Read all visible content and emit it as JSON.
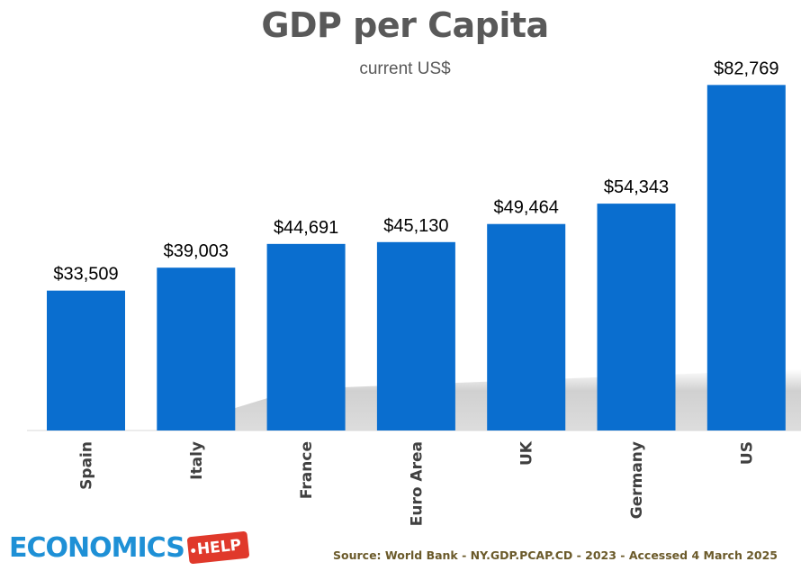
{
  "chart_data": {
    "type": "bar",
    "title": "GDP per Capita",
    "subtitle": "current US$",
    "categories": [
      "Spain",
      "Italy",
      "France",
      "Euro Area",
      "UK",
      "Germany",
      "US"
    ],
    "values": [
      33509,
      39003,
      44691,
      45130,
      49464,
      54343,
      82769
    ],
    "data_labels": [
      "$33,509",
      "$39,003",
      "$44,691",
      "$45,130",
      "$49,464",
      "$54,343",
      "$82,769"
    ],
    "ylim": [
      0,
      85000
    ],
    "grid": false,
    "legend": "none",
    "bar_color": "#0a6ecf"
  },
  "footer": {
    "logo_text": "ECONOMICS",
    "logo_tag": "HELP",
    "source": "Source: World Bank - NY.GDP.PCAP.CD - 2023 - Accessed 4 March 2025"
  },
  "colors": {
    "title": "#595959",
    "bar": "#0a6ecf",
    "logo_blue": "#1e90d6",
    "logo_red": "#e0392b",
    "source_text": "#6b5a2a"
  }
}
